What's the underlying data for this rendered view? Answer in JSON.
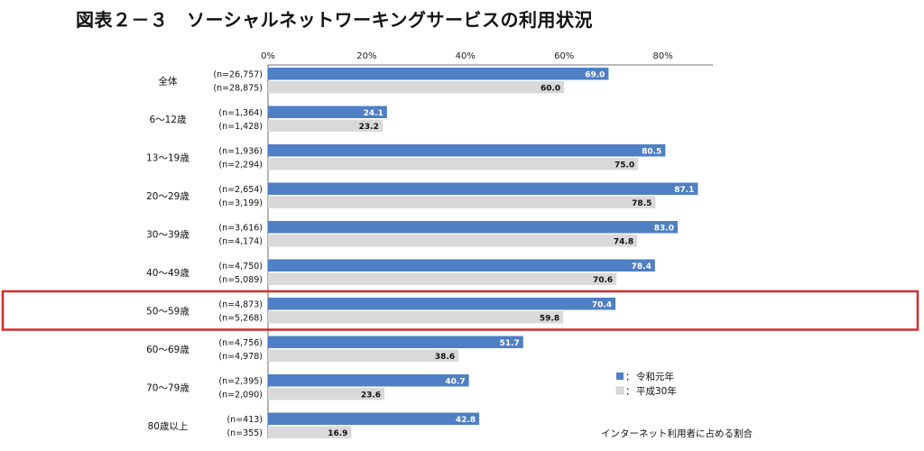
{
  "title": "図表２－３　ソーシャルネットワーキングサービスの利用状況",
  "chart_data": {
    "type": "bar",
    "orientation": "horizontal",
    "categories": [
      "全体",
      "6～12歳",
      "13～19歳",
      "20～29歳",
      "30～39歳",
      "40～49歳",
      "50～59歳",
      "60～69歳",
      "70～79歳",
      "80歳以上"
    ],
    "series": [
      {
        "name": "令和元年",
        "color": "#4f7fc4",
        "values": [
          69.0,
          24.1,
          80.5,
          87.1,
          83.0,
          78.4,
          70.4,
          51.7,
          40.7,
          42.8
        ],
        "n_labels": [
          "(n=26,757)",
          "(n=1,364)",
          "(n=1,936)",
          "(n=2,654)",
          "(n=3,616)",
          "(n=4,750)",
          "(n=4,873)",
          "(n=4,756)",
          "(n=2,395)",
          "(n=413)"
        ]
      },
      {
        "name": "平成30年",
        "color": "#d9d9d9",
        "values": [
          60.0,
          23.2,
          75.0,
          78.5,
          74.8,
          70.6,
          59.8,
          38.6,
          23.6,
          16.9
        ],
        "n_labels": [
          "(n=28,875)",
          "(n=1,428)",
          "(n=2,294)",
          "(n=3,199)",
          "(n=4,174)",
          "(n=5,089)",
          "(n=5,268)",
          "(n=4,978)",
          "(n=2,090)",
          "(n=355)"
        ]
      }
    ],
    "x_ticks": [
      "0%",
      "20%",
      "40%",
      "60%",
      "80%"
    ],
    "xlim": [
      0,
      90
    ],
    "legend_position": "bottom-right",
    "legend_prefix": "：",
    "highlight_category": "50～59歳",
    "highlight_color": "#d42b2b",
    "footnote": "インターネット利用者に占める割合"
  }
}
